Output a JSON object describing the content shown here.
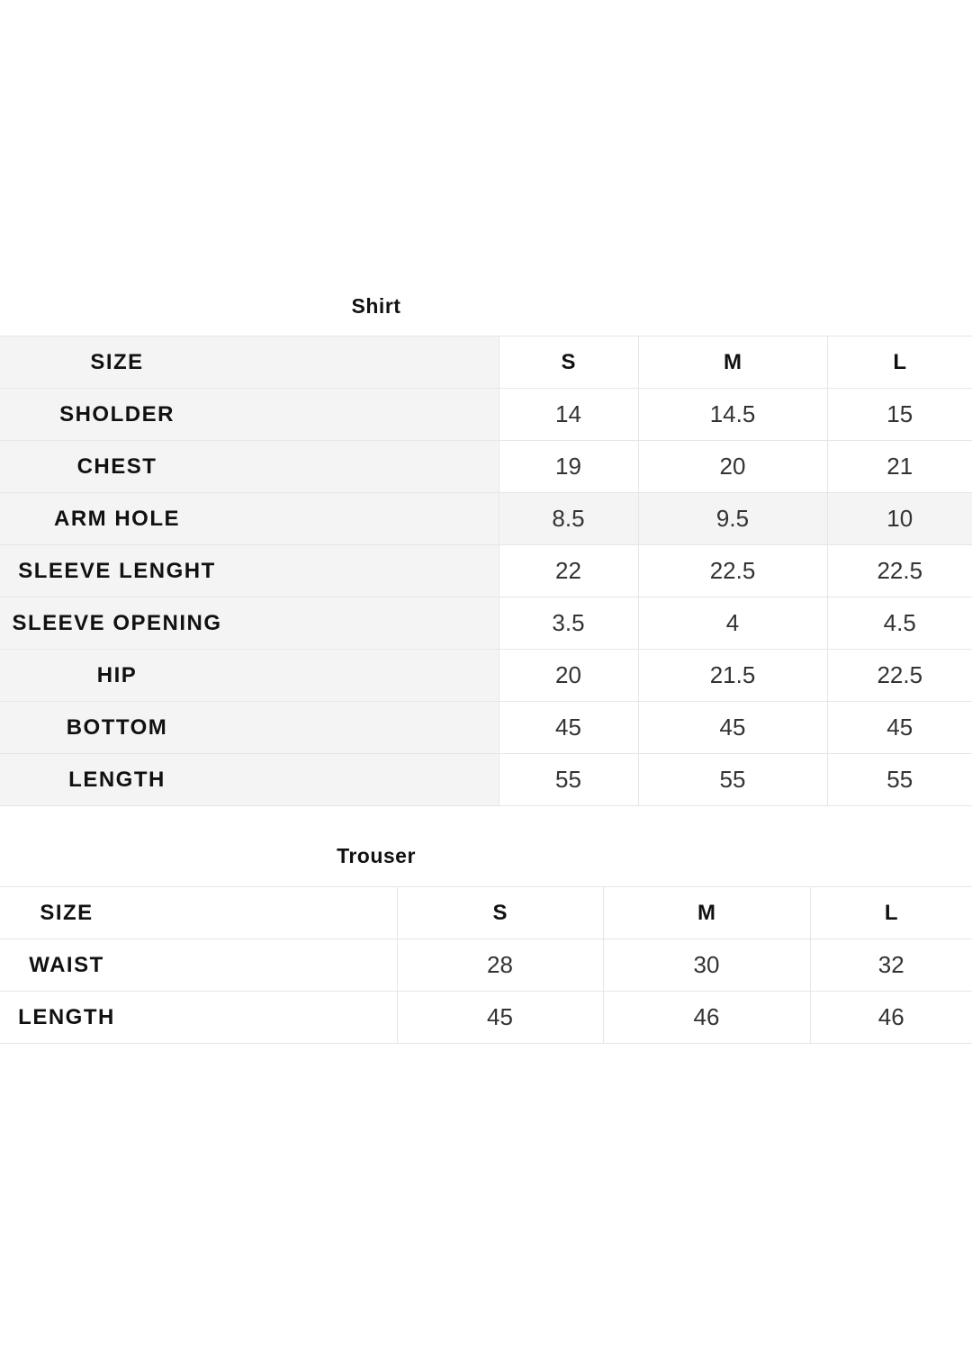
{
  "shirt": {
    "title": "Shirt",
    "header": [
      "SIZE",
      "S",
      "M",
      "L"
    ],
    "rows": [
      {
        "label": "SHOLDER",
        "values": [
          "14",
          "14.5",
          "15"
        ]
      },
      {
        "label": "CHEST",
        "values": [
          "19",
          "20",
          "21"
        ]
      },
      {
        "label": "ARM HOLE",
        "values": [
          "8.5",
          "9.5",
          "10"
        ]
      },
      {
        "label": "SLEEVE LENGHT",
        "values": [
          "22",
          "22.5",
          "22.5"
        ]
      },
      {
        "label": "SLEEVE OPENING",
        "values": [
          "3.5",
          "4",
          "4.5"
        ]
      },
      {
        "label": "HIP",
        "values": [
          "20",
          "21.5",
          "22.5"
        ]
      },
      {
        "label": "BOTTOM",
        "values": [
          "45",
          "45",
          "45"
        ]
      },
      {
        "label": "LENGTH",
        "values": [
          "55",
          "55",
          "55"
        ]
      }
    ]
  },
  "trouser": {
    "title": "Trouser",
    "header": [
      "SIZE",
      "S",
      "M",
      "L"
    ],
    "rows": [
      {
        "label": "WAIST",
        "values": [
          "28",
          "30",
          "32"
        ]
      },
      {
        "label": "LENGTH",
        "values": [
          "45",
          "46",
          "46"
        ]
      }
    ]
  },
  "colors": {
    "label_bg": "#f4f4f4",
    "border": "#e6e6e6"
  }
}
